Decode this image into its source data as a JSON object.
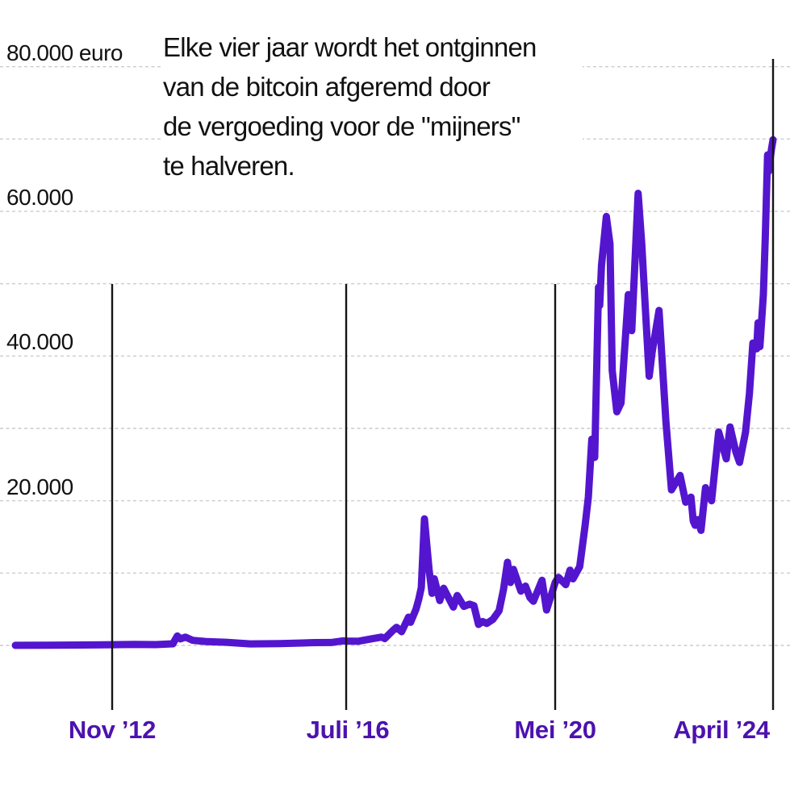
{
  "chart_data": {
    "type": "line",
    "subject": "bitcoin price in euro with halving dates",
    "annotation": {
      "lines": [
        "Elke vier jaar wordt het ontginnen",
        "van de bitcoin afgeremd door",
        "de vergoeding voor de \"mijners\"",
        "te halveren."
      ]
    },
    "unit": "euro",
    "ylim": [
      0,
      80000
    ],
    "grid_step": 10000,
    "grid_on": true,
    "y_axis_labels": [
      {
        "value": 80000,
        "text": "80.000 euro"
      },
      {
        "value": 60000,
        "text": "60.000"
      },
      {
        "value": 40000,
        "text": "40.000"
      },
      {
        "value": 20000,
        "text": "20.000"
      }
    ],
    "halvings": [
      {
        "label": "Nov ’12",
        "date": "2012-11-28"
      },
      {
        "label": "Juli ’16",
        "date": "2016-07-09"
      },
      {
        "label": "Mei ’20",
        "date": "2020-05-11"
      },
      {
        "label": "April ’24",
        "date": "2024-04-19"
      }
    ],
    "series": [
      {
        "name": "bitcoin_price_eur",
        "points": [
          [
            "2011-06-01",
            10
          ],
          [
            "2011-12-01",
            30
          ],
          [
            "2012-06-01",
            55
          ],
          [
            "2012-11-28",
            95
          ],
          [
            "2013-04-01",
            140
          ],
          [
            "2013-08-01",
            110
          ],
          [
            "2013-11-05",
            220
          ],
          [
            "2013-11-30",
            1300
          ],
          [
            "2013-12-18",
            900
          ],
          [
            "2014-01-15",
            1150
          ],
          [
            "2014-02-25",
            700
          ],
          [
            "2014-05-15",
            520
          ],
          [
            "2014-09-01",
            430
          ],
          [
            "2015-01-15",
            210
          ],
          [
            "2015-07-01",
            240
          ],
          [
            "2015-11-05",
            330
          ],
          [
            "2016-01-15",
            390
          ],
          [
            "2016-04-15",
            400
          ],
          [
            "2016-06-18",
            620
          ],
          [
            "2016-07-09",
            600
          ],
          [
            "2016-09-25",
            570
          ],
          [
            "2016-12-31",
            930
          ],
          [
            "2017-03-03",
            1150
          ],
          [
            "2017-03-25",
            950
          ],
          [
            "2017-05-20",
            2100
          ],
          [
            "2017-06-12",
            2500
          ],
          [
            "2017-07-16",
            1900
          ],
          [
            "2017-08-31",
            3900
          ],
          [
            "2017-09-14",
            3200
          ],
          [
            "2017-10-20",
            5000
          ],
          [
            "2017-11-08",
            6400
          ],
          [
            "2017-11-25",
            8000
          ],
          [
            "2017-12-16",
            17500
          ],
          [
            "2018-01-16",
            10500
          ],
          [
            "2018-02-05",
            7200
          ],
          [
            "2018-02-20",
            9200
          ],
          [
            "2018-03-29",
            6200
          ],
          [
            "2018-04-24",
            7900
          ],
          [
            "2018-06-28",
            5300
          ],
          [
            "2018-07-24",
            6900
          ],
          [
            "2018-09-06",
            5400
          ],
          [
            "2018-10-15",
            5700
          ],
          [
            "2018-11-13",
            5500
          ],
          [
            "2018-12-14",
            2900
          ],
          [
            "2019-01-10",
            3300
          ],
          [
            "2019-02-07",
            3050
          ],
          [
            "2019-03-20",
            3600
          ],
          [
            "2019-05-01",
            4800
          ],
          [
            "2019-05-30",
            7700
          ],
          [
            "2019-06-26",
            11500
          ],
          [
            "2019-07-16",
            8700
          ],
          [
            "2019-08-05",
            10500
          ],
          [
            "2019-09-24",
            7500
          ],
          [
            "2019-10-25",
            8200
          ],
          [
            "2019-11-24",
            6600
          ],
          [
            "2019-12-17",
            6100
          ],
          [
            "2020-02-13",
            9000
          ],
          [
            "2020-03-14",
            4900
          ],
          [
            "2020-04-29",
            7900
          ],
          [
            "2020-05-11",
            8700
          ],
          [
            "2020-06-02",
            9400
          ],
          [
            "2020-07-20",
            8400
          ],
          [
            "2020-08-17",
            10400
          ],
          [
            "2020-09-06",
            9200
          ],
          [
            "2020-10-20",
            10900
          ],
          [
            "2020-11-24",
            16500
          ],
          [
            "2020-12-16",
            20500
          ],
          [
            "2021-01-08",
            28500
          ],
          [
            "2021-01-27",
            26000
          ],
          [
            "2021-02-21",
            49500
          ],
          [
            "2021-03-01",
            47000
          ],
          [
            "2021-03-13",
            52500
          ],
          [
            "2021-04-14",
            59300
          ],
          [
            "2021-05-08",
            55500
          ],
          [
            "2021-05-23",
            38000
          ],
          [
            "2021-06-22",
            32300
          ],
          [
            "2021-07-20",
            33500
          ],
          [
            "2021-09-06",
            48500
          ],
          [
            "2021-09-29",
            43500
          ],
          [
            "2021-11-10",
            62500
          ],
          [
            "2021-12-04",
            55500
          ],
          [
            "2021-12-28",
            46500
          ],
          [
            "2022-01-22",
            37200
          ],
          [
            "2022-02-10",
            40500
          ],
          [
            "2022-03-28",
            46300
          ],
          [
            "2022-05-12",
            31000
          ],
          [
            "2022-06-18",
            21500
          ],
          [
            "2022-08-14",
            23500
          ],
          [
            "2022-09-20",
            19800
          ],
          [
            "2022-10-25",
            20500
          ],
          [
            "2022-11-09",
            17200
          ],
          [
            "2022-11-21",
            16600
          ],
          [
            "2022-12-10",
            17400
          ],
          [
            "2022-12-30",
            15900
          ],
          [
            "2023-01-29",
            21800
          ],
          [
            "2023-03-10",
            20000
          ],
          [
            "2023-04-26",
            29500
          ],
          [
            "2023-06-15",
            25800
          ],
          [
            "2023-07-10",
            30200
          ],
          [
            "2023-08-17",
            26800
          ],
          [
            "2023-09-11",
            25300
          ],
          [
            "2023-10-20",
            29500
          ],
          [
            "2023-11-15",
            34800
          ],
          [
            "2023-12-08",
            41800
          ],
          [
            "2024-01-02",
            41000
          ],
          [
            "2024-01-11",
            44600
          ],
          [
            "2024-01-23",
            41300
          ],
          [
            "2024-02-15",
            48500
          ],
          [
            "2024-02-28",
            56500
          ],
          [
            "2024-03-14",
            67800
          ],
          [
            "2024-03-20",
            65500
          ],
          [
            "2024-04-08",
            68500
          ],
          [
            "2024-04-19",
            69900
          ]
        ]
      }
    ],
    "colors": {
      "line": "#5415cf",
      "halving_line": "#151515",
      "x_label": "#4c12ae",
      "grid": "#cccccc",
      "text": "#111111",
      "background": "#ffffff"
    }
  }
}
